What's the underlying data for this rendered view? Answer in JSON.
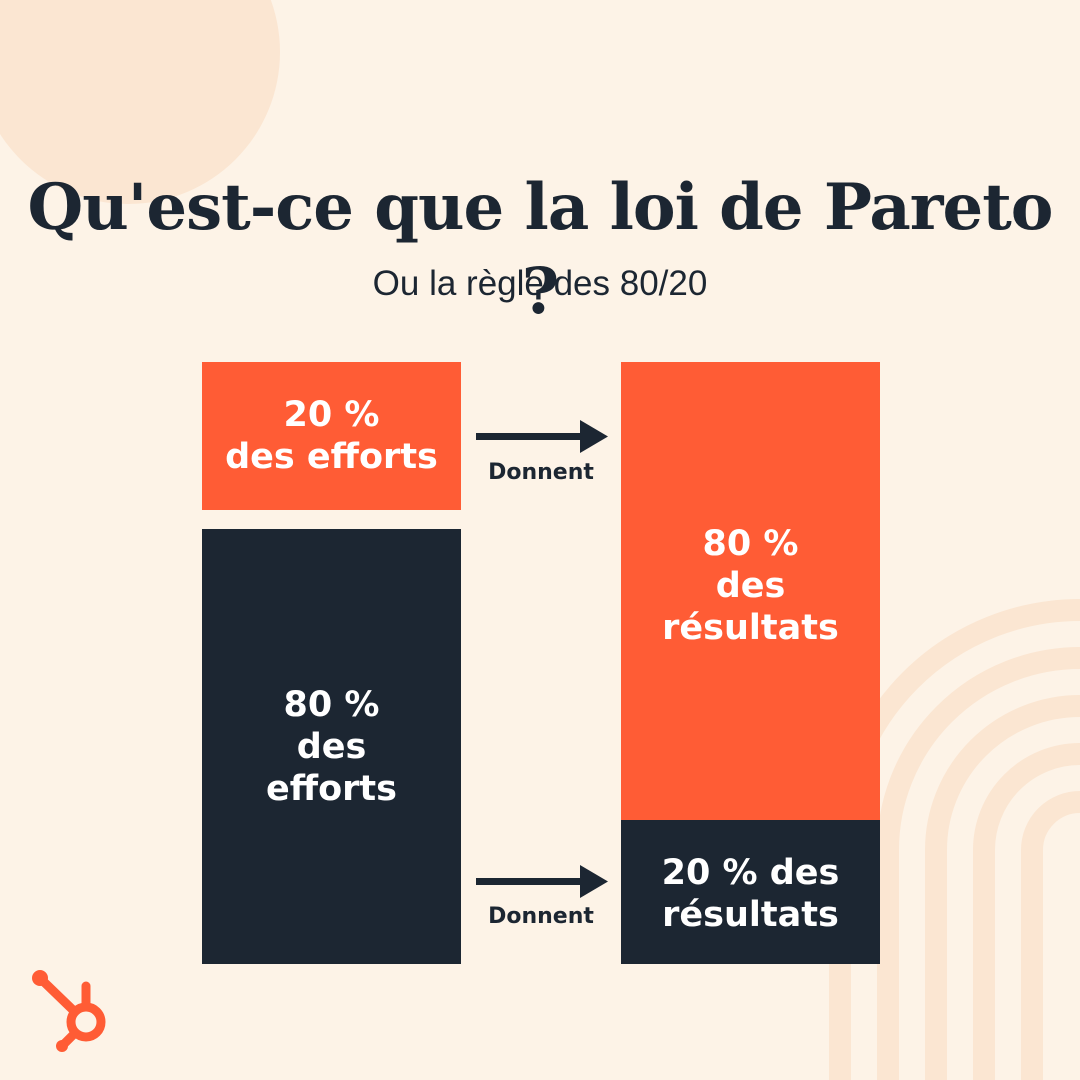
{
  "colors": {
    "background": "#FDF3E7",
    "decor": "#FBE6D2",
    "accent": "#FF5C35",
    "dark": "#1C2632",
    "text_on_block": "#FFFFFF"
  },
  "header": {
    "title": "Qu'est-ce que la loi de Pareto ?",
    "subtitle": "Ou la règle des 80/20"
  },
  "diagram": {
    "efforts": {
      "top": {
        "percent": "20 %",
        "line2": "des efforts"
      },
      "bottom": {
        "percent": "80 %",
        "line2": "des",
        "line3": "efforts"
      }
    },
    "results": {
      "top": {
        "percent": "80 %",
        "line2": "des",
        "line3": "résultats"
      },
      "bottom": {
        "line1": "20 % des",
        "line2": "résultats"
      }
    },
    "arrows": {
      "top_label": "Donnent",
      "bottom_label": "Donnent"
    },
    "shares": {
      "effort_top_percent": 20,
      "effort_bottom_percent": 80,
      "result_top_percent": 80,
      "result_bottom_percent": 20
    }
  },
  "branding": {
    "logo_icon": "hubspot-sprocket-icon"
  }
}
